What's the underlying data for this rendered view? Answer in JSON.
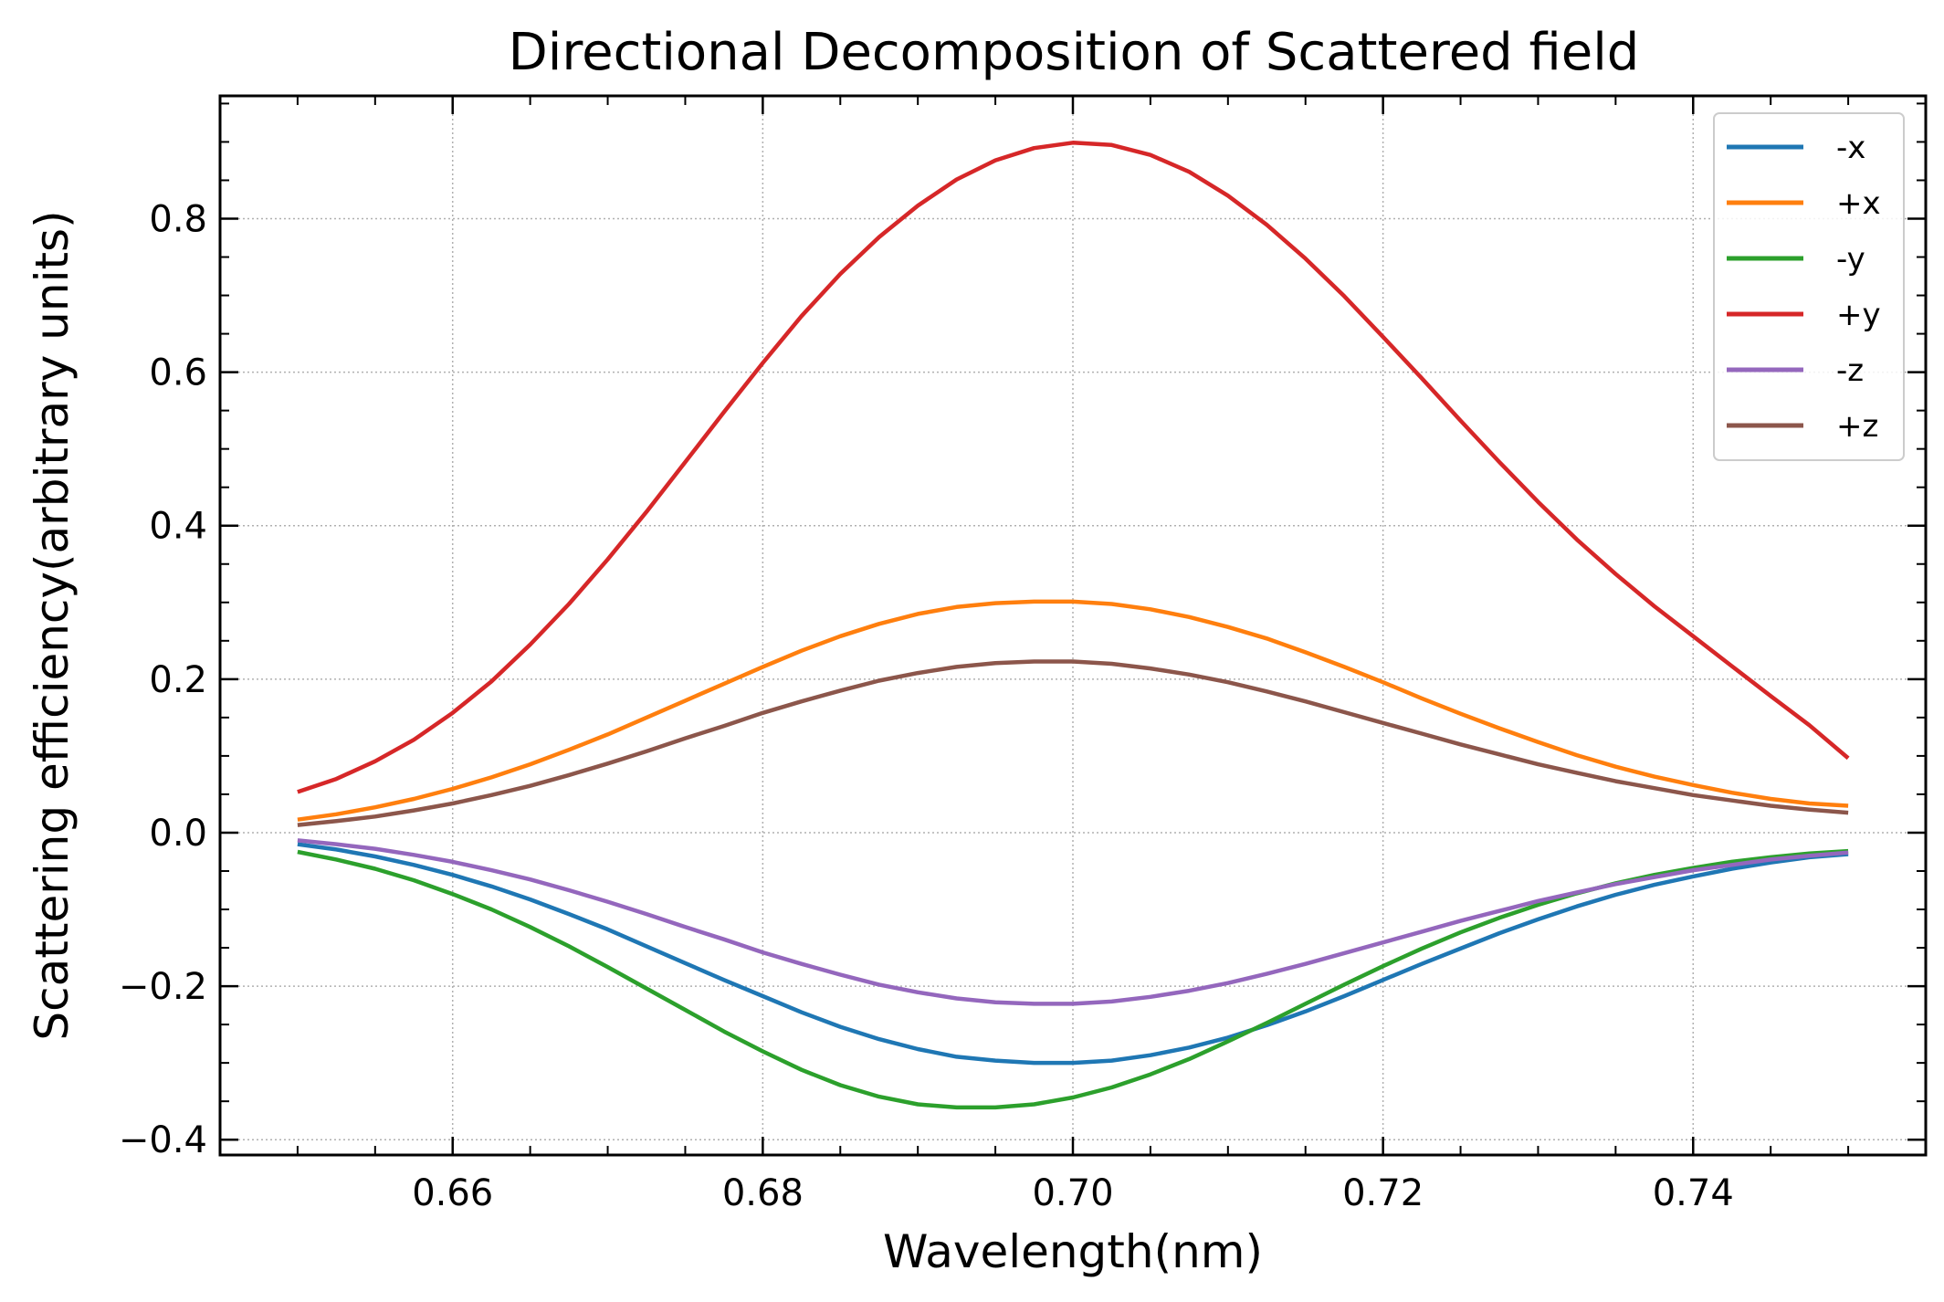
{
  "chart_data": {
    "type": "line",
    "title": "Directional Decomposition of Scattered field",
    "xlabel": "Wavelength(nm)",
    "ylabel": "Scattering efficiency(arbitrary units)",
    "xlim": [
      0.645,
      0.755
    ],
    "ylim": [
      -0.42,
      0.96
    ],
    "xticks": [
      0.66,
      0.68,
      0.7,
      0.72,
      0.74
    ],
    "xtick_labels": [
      "0.66",
      "0.68",
      "0.70",
      "0.72",
      "0.74"
    ],
    "yticks": [
      -0.4,
      -0.2,
      0.0,
      0.2,
      0.4,
      0.6,
      0.8
    ],
    "ytick_labels": [
      "−0.4",
      "−0.2",
      "0.0",
      "0.2",
      "0.4",
      "0.6",
      "0.8"
    ],
    "grid": true,
    "legend_position": "top-right",
    "x": [
      0.65,
      0.6525,
      0.655,
      0.6575,
      0.66,
      0.6625,
      0.665,
      0.6675,
      0.67,
      0.6725,
      0.675,
      0.6775,
      0.68,
      0.6825,
      0.685,
      0.6875,
      0.69,
      0.6925,
      0.695,
      0.6975,
      0.7,
      0.7025,
      0.705,
      0.7075,
      0.71,
      0.7125,
      0.715,
      0.7175,
      0.72,
      0.7225,
      0.725,
      0.7275,
      0.73,
      0.7325,
      0.735,
      0.7375,
      0.74,
      0.7425,
      0.745,
      0.7475,
      0.75
    ],
    "series": [
      {
        "name": "-x",
        "color": "#1f77b4",
        "values": [
          -0.015,
          -0.022,
          -0.031,
          -0.042,
          -0.055,
          -0.07,
          -0.087,
          -0.106,
          -0.126,
          -0.148,
          -0.17,
          -0.192,
          -0.213,
          -0.234,
          -0.253,
          -0.269,
          -0.282,
          -0.292,
          -0.297,
          -0.3,
          -0.3,
          -0.297,
          -0.29,
          -0.28,
          -0.267,
          -0.251,
          -0.233,
          -0.213,
          -0.192,
          -0.171,
          -0.151,
          -0.131,
          -0.113,
          -0.096,
          -0.081,
          -0.068,
          -0.057,
          -0.047,
          -0.039,
          -0.032,
          -0.028
        ]
      },
      {
        "name": "+x",
        "color": "#ff7f0e",
        "values": [
          0.017,
          0.024,
          0.033,
          0.044,
          0.057,
          0.072,
          0.089,
          0.108,
          0.128,
          0.15,
          0.172,
          0.194,
          0.216,
          0.237,
          0.256,
          0.272,
          0.285,
          0.294,
          0.299,
          0.301,
          0.301,
          0.298,
          0.291,
          0.281,
          0.268,
          0.253,
          0.235,
          0.216,
          0.196,
          0.175,
          0.155,
          0.136,
          0.118,
          0.101,
          0.086,
          0.073,
          0.062,
          0.052,
          0.044,
          0.038,
          0.035
        ]
      },
      {
        "name": "-y",
        "color": "#2ca02c",
        "values": [
          -0.025,
          -0.035,
          -0.047,
          -0.062,
          -0.08,
          -0.1,
          -0.123,
          -0.148,
          -0.175,
          -0.203,
          -0.231,
          -0.259,
          -0.285,
          -0.309,
          -0.329,
          -0.344,
          -0.354,
          -0.358,
          -0.358,
          -0.354,
          -0.345,
          -0.332,
          -0.315,
          -0.295,
          -0.272,
          -0.248,
          -0.223,
          -0.198,
          -0.174,
          -0.151,
          -0.13,
          -0.111,
          -0.094,
          -0.079,
          -0.066,
          -0.055,
          -0.046,
          -0.038,
          -0.032,
          -0.027,
          -0.024
        ]
      },
      {
        "name": "+y",
        "color": "#d62728",
        "values": [
          0.053,
          0.07,
          0.093,
          0.121,
          0.156,
          0.197,
          0.245,
          0.298,
          0.356,
          0.418,
          0.483,
          0.548,
          0.612,
          0.673,
          0.728,
          0.776,
          0.817,
          0.851,
          0.876,
          0.892,
          0.899,
          0.896,
          0.883,
          0.861,
          0.83,
          0.792,
          0.748,
          0.699,
          0.646,
          0.592,
          0.537,
          0.483,
          0.431,
          0.382,
          0.337,
          0.295,
          0.256,
          0.217,
          0.178,
          0.14,
          0.097
        ]
      },
      {
        "name": "-z",
        "color": "#9467bd",
        "values": [
          -0.01,
          -0.015,
          -0.021,
          -0.029,
          -0.038,
          -0.049,
          -0.061,
          -0.075,
          -0.09,
          -0.106,
          -0.123,
          -0.139,
          -0.156,
          -0.171,
          -0.185,
          -0.198,
          -0.208,
          -0.216,
          -0.221,
          -0.223,
          -0.223,
          -0.22,
          -0.214,
          -0.206,
          -0.196,
          -0.184,
          -0.171,
          -0.157,
          -0.143,
          -0.129,
          -0.115,
          -0.102,
          -0.089,
          -0.078,
          -0.067,
          -0.058,
          -0.049,
          -0.042,
          -0.035,
          -0.03,
          -0.026
        ]
      },
      {
        "name": "+z",
        "color": "#8c564b",
        "values": [
          0.01,
          0.015,
          0.021,
          0.029,
          0.038,
          0.049,
          0.061,
          0.075,
          0.09,
          0.106,
          0.123,
          0.139,
          0.156,
          0.171,
          0.185,
          0.198,
          0.208,
          0.216,
          0.221,
          0.223,
          0.223,
          0.22,
          0.214,
          0.206,
          0.196,
          0.184,
          0.171,
          0.157,
          0.143,
          0.129,
          0.115,
          0.102,
          0.089,
          0.078,
          0.067,
          0.058,
          0.049,
          0.042,
          0.035,
          0.03,
          0.026
        ]
      }
    ]
  }
}
